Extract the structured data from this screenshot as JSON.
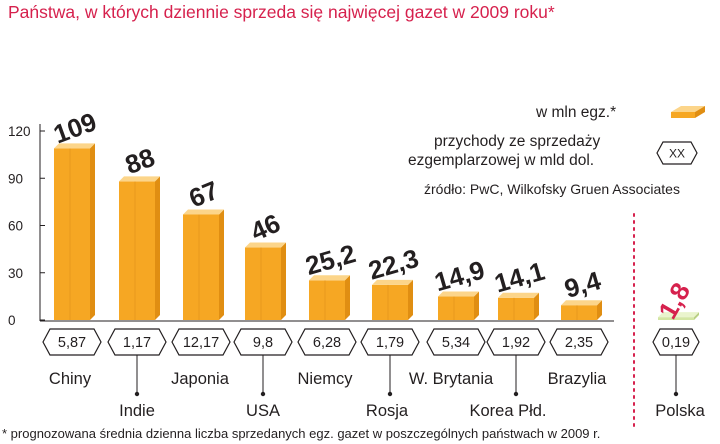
{
  "title": "Państwa, w których dziennie sprzeda się najwięcej gazet w 2009 roku*",
  "legend": {
    "units_label": "w mln egz.*",
    "revenue_label_line1": "przychody ze sprzedaży",
    "revenue_label_line2": "ezgemplarzowej w mld dol.",
    "revenue_box_text": "XX",
    "source": "źródło: PwC, Wilkofsky Gruen Associates"
  },
  "footnote": "* prognozowana średnia dzienna liczba sprzedanych egz. gazet w poszczególnych państwach w 2009 r.",
  "colors": {
    "title": "#d6214d",
    "bar_front": "#f6a723",
    "bar_top": "#fcd58a",
    "bar_side": "#e08e12",
    "highlight_bar_front": "#d3e6a3",
    "highlight_bar_top": "#eaf4cd",
    "highlight_value": "#d6214d",
    "divider": "#d6214d"
  },
  "chart_data": {
    "type": "bar",
    "ylim": [
      0,
      120
    ],
    "yticks": [
      0,
      30,
      60,
      90,
      120
    ],
    "categories": [
      "Chiny",
      "Indie",
      "Japonia",
      "USA",
      "Niemcy",
      "Rosja",
      "W. Brytania",
      "Korea Płd.",
      "Brazylia",
      "Polska"
    ],
    "values": [
      109,
      88,
      67,
      46,
      25.2,
      22.3,
      14.9,
      14.1,
      9.4,
      1.8
    ],
    "value_labels": [
      "109",
      "88",
      "67",
      "46",
      "25,2",
      "22,3",
      "14,9",
      "14,1",
      "9,4",
      "1,8"
    ],
    "revenue": [
      "5,87",
      "1,17",
      "12,17",
      "9,8",
      "6,28",
      "1,79",
      "5,34",
      "1,92",
      "2,35",
      "0,19"
    ],
    "series": [
      {
        "name": "w mln egz.*",
        "values": [
          109,
          88,
          67,
          46,
          25.2,
          22.3,
          14.9,
          14.1,
          9.4,
          1.8
        ]
      },
      {
        "name": "przychody ze sprzedaży ezgemplarzowej w mld dol.",
        "values": [
          5.87,
          1.17,
          12.17,
          9.8,
          6.28,
          1.79,
          5.34,
          1.92,
          2.35,
          0.19
        ]
      }
    ],
    "highlight": "Polska",
    "xlabel": "",
    "ylabel": "",
    "grid": false
  }
}
